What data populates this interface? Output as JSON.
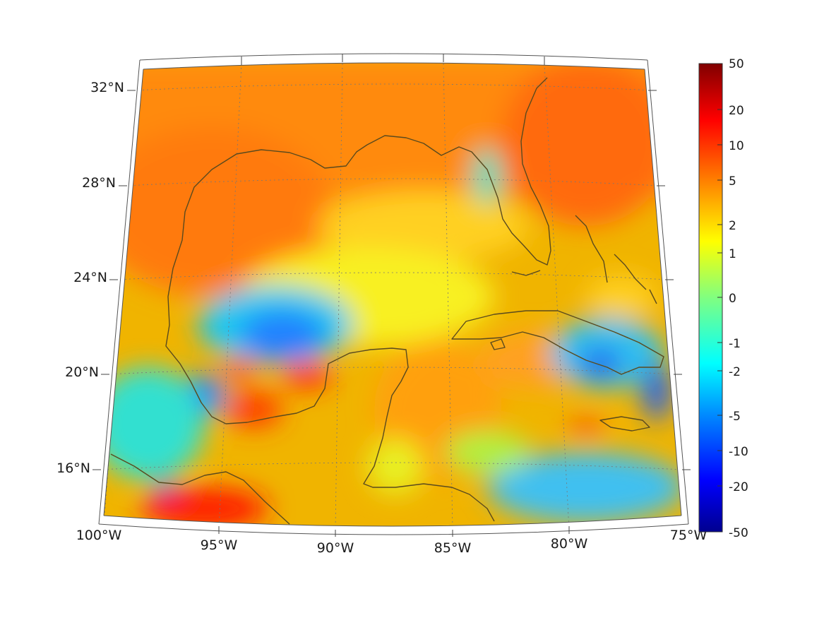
{
  "map": {
    "projection": "conic",
    "field": "gridded anomaly",
    "lat_labels": [
      "32°N",
      "28°N",
      "24°N",
      "20°N",
      "16°N"
    ],
    "lon_labels": [
      "100°W",
      "95°W",
      "90°W",
      "85°W",
      "80°W",
      "75°W"
    ],
    "extent": {
      "lon_min": -100,
      "lon_max": -75,
      "lat_min": 14,
      "lat_max": 33
    },
    "coastline_color": "#5a4a1e",
    "gridline_style": "dotted"
  },
  "colorbar": {
    "ticks": [
      "50",
      "20",
      "10",
      "5",
      "2",
      "1",
      "0",
      "-1",
      "-2",
      "-5",
      "-10",
      "-20",
      "-50"
    ],
    "colormap": [
      "#00008f",
      "#0000ff",
      "#0080ff",
      "#00ffff",
      "#80ff80",
      "#ffff00",
      "#ff8000",
      "#ff0000",
      "#800000"
    ]
  }
}
